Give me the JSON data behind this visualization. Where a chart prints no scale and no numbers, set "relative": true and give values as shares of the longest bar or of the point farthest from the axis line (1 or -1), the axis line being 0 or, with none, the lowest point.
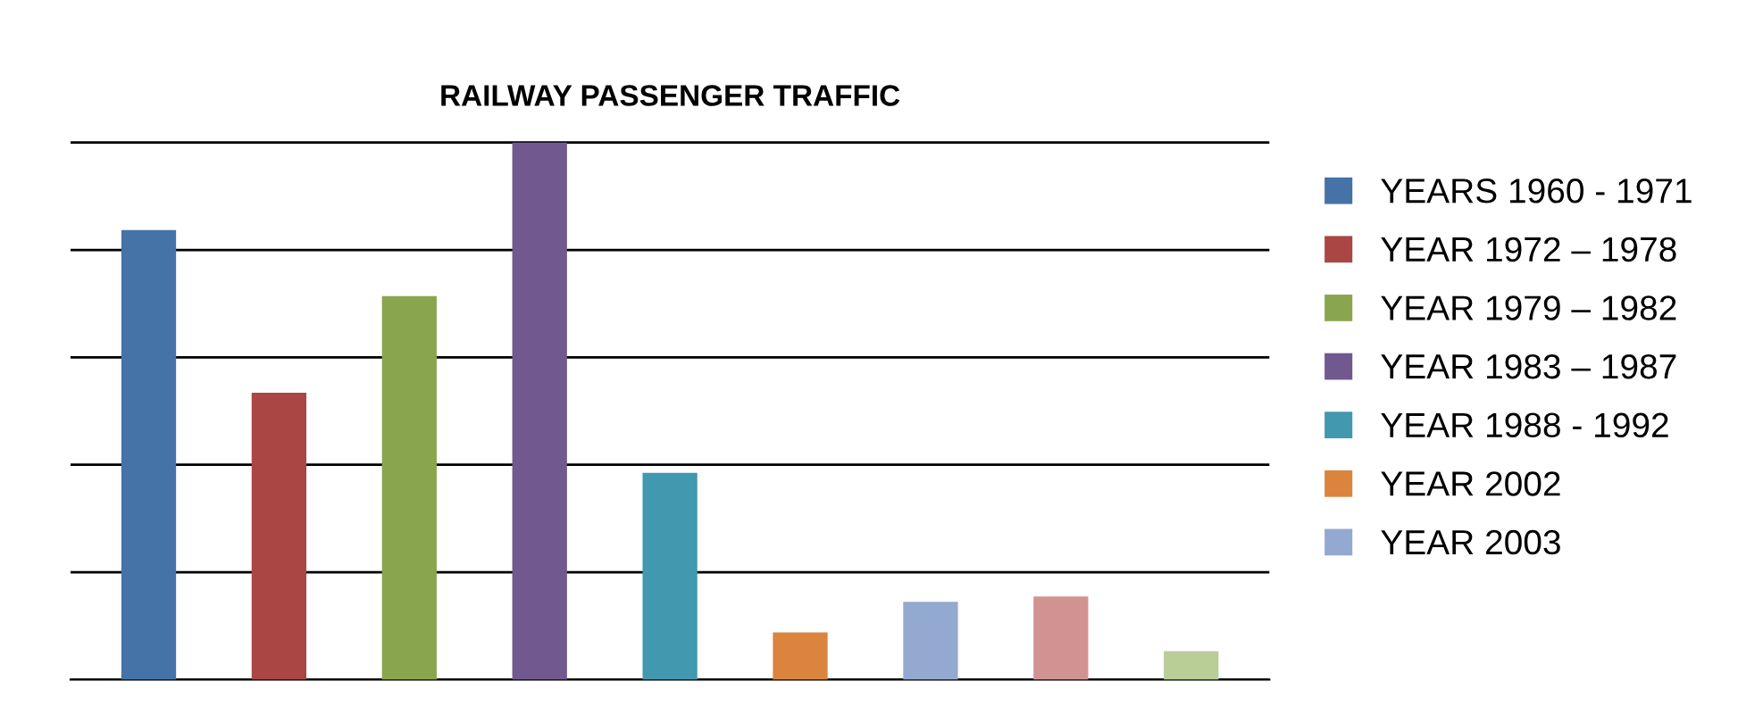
{
  "chart_data": {
    "type": "bar",
    "title": "RAILWAY PASSENGER TRAFFIC",
    "relative": true,
    "stacked": true,
    "grid": "y",
    "legend": "right",
    "categories": [
      null,
      null,
      null,
      null,
      null,
      null,
      null,
      null,
      null
    ],
    "series": [
      {
        "name": "YEARS 1960 - 1971",
        "color": "#4572a7",
        "values": [
          0.837,
          null,
          null,
          null,
          null,
          null,
          null,
          null,
          null
        ]
      },
      {
        "name": "YEAR 1972 – 1978",
        "color": "#aa4643",
        "values": [
          null,
          0.534,
          null,
          null,
          null,
          null,
          null,
          null,
          null
        ]
      },
      {
        "name": "YEAR 1979 – 1982",
        "color": "#89a54e",
        "values": [
          null,
          null,
          0.714,
          null,
          null,
          null,
          null,
          null,
          null
        ]
      },
      {
        "name": "YEAR 1983 – 1987",
        "color": "#71588f",
        "values": [
          null,
          null,
          null,
          1,
          null,
          null,
          null,
          null,
          null
        ]
      },
      {
        "name": "YEAR 1988 - 1992",
        "color": "#4198af",
        "values": [
          null,
          null,
          null,
          null,
          0.385,
          null,
          null,
          null,
          null
        ]
      },
      {
        "name": "YEAR 2002",
        "color": "#db843d",
        "values": [
          null,
          null,
          null,
          null,
          null,
          0.088,
          null,
          null,
          null
        ]
      },
      {
        "name": "YEAR 2003",
        "color": "#93a9cf",
        "values": [
          null,
          null,
          null,
          null,
          null,
          null,
          0.145,
          null,
          null
        ]
      },
      {
        "color": "#d19392",
        "values": [
          null,
          null,
          null,
          null,
          null,
          null,
          null,
          0.155,
          null
        ]
      },
      {
        "color": "#b9cd96",
        "values": [
          null,
          null,
          null,
          null,
          null,
          null,
          null,
          null,
          0.053
        ]
      }
    ]
  }
}
